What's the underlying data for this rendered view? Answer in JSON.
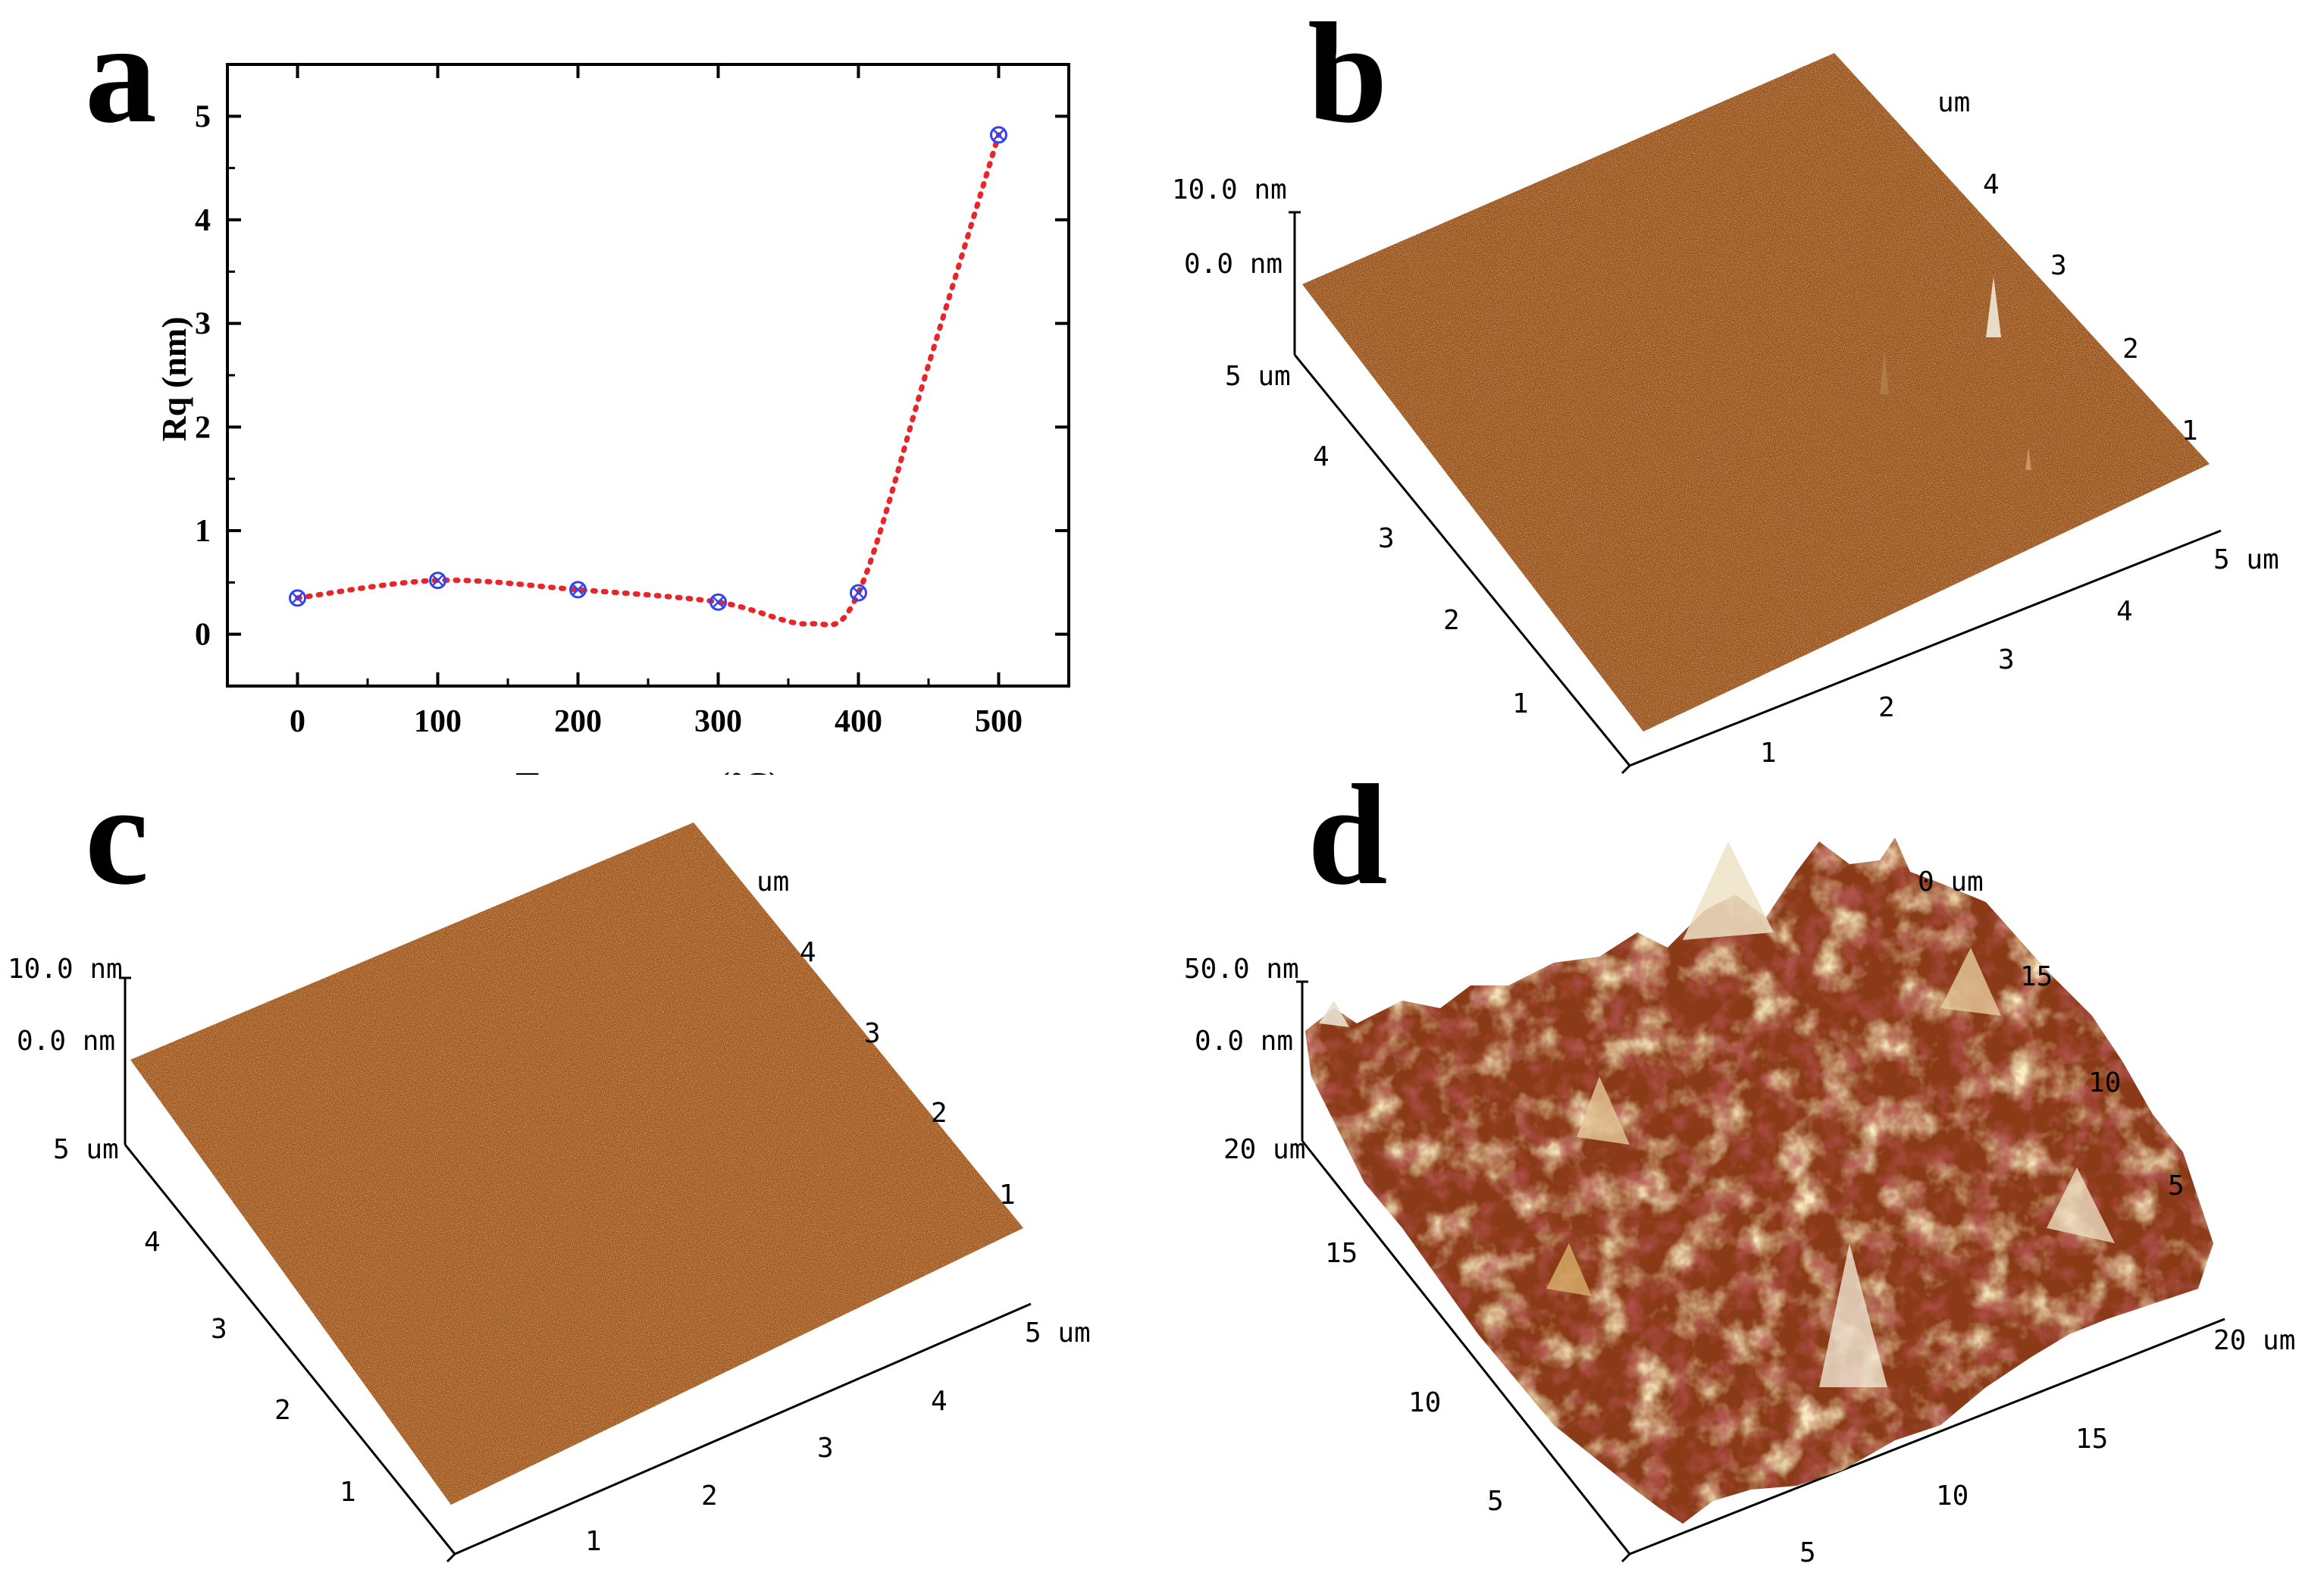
{
  "chart_data": [
    {
      "panel": "a",
      "type": "scatter",
      "xlabel": "Temperature (°C)",
      "ylabel": "Rq (nm)",
      "x": [
        0,
        100,
        200,
        300,
        400,
        500
      ],
      "values": [
        0.35,
        0.52,
        0.43,
        0.31,
        0.4,
        4.82
      ],
      "xlim": [
        -50,
        550
      ],
      "ylim": [
        -0.5,
        5.5
      ],
      "xticks": [
        "0",
        "100",
        "200",
        "300",
        "400",
        "500"
      ],
      "yticks": [
        "0",
        "1",
        "2",
        "3",
        "4",
        "5"
      ],
      "fit_curve": "dotted spline",
      "colors": {
        "marker": "#3344ee",
        "fit": "#e8262a"
      }
    }
  ],
  "panels": {
    "a": {
      "label": "a"
    },
    "b": {
      "label": "b",
      "z_top": "10.0 nm",
      "z_zero": "0.0 nm",
      "x_end": "5 um",
      "y_end": "5 um",
      "unit_top": "um",
      "x_ticks": [
        "1",
        "2",
        "3",
        "4"
      ],
      "y_ticks": [
        "1",
        "2",
        "3",
        "4"
      ],
      "back_ticks": [
        "1",
        "2",
        "3",
        "4"
      ]
    },
    "c": {
      "label": "c",
      "z_top": "10.0 nm",
      "z_zero": "0.0 nm",
      "x_end": "5 um",
      "y_end": "5 um",
      "unit_top": "um",
      "x_ticks": [
        "1",
        "2",
        "3",
        "4"
      ],
      "y_ticks": [
        "1",
        "2",
        "3",
        "4"
      ],
      "back_ticks": [
        "1",
        "2",
        "3",
        "4"
      ]
    },
    "d": {
      "label": "d",
      "z_top": "50.0 nm",
      "z_zero": "0.0 nm",
      "x_end": "20 um",
      "y_end": "20 um",
      "unit_top": "0 um",
      "x_ticks": [
        "5",
        "10",
        "15"
      ],
      "y_ticks": [
        "5",
        "10",
        "15"
      ],
      "back_ticks": [
        "5",
        "10",
        "15"
      ]
    }
  },
  "colors": {
    "afm_dark": "#6b2a06",
    "afm_mid": "#a0521a",
    "afm_light": "#d8943c",
    "afm_peak": "#f3e3b8"
  }
}
